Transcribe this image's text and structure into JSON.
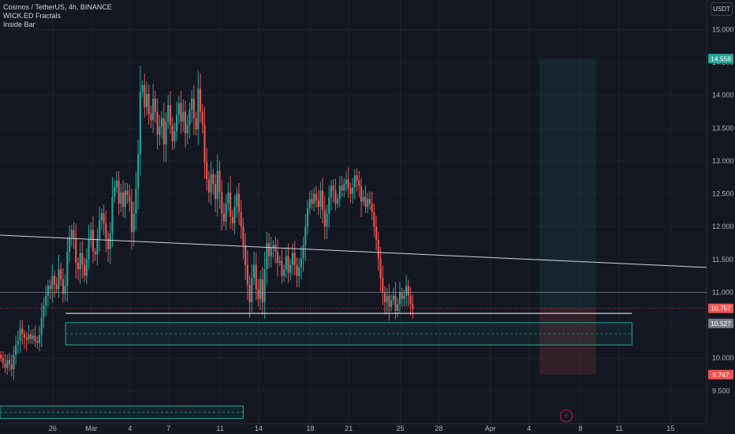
{
  "legend": {
    "symbol": "Cosmos / TetherUS, 4h, BINANCE",
    "indicator1": "WICK.ED Fractals",
    "indicator2": "Inside Bar"
  },
  "currency_label": "USDT",
  "colors": {
    "background": "#131722",
    "grid": "#1e222d",
    "up": "#26a69a",
    "down": "#ef5350",
    "zone_border": "#26a69a",
    "target_green": "#26a69a",
    "stop_red": "#ef5350",
    "trendline": "#d1d4dc"
  },
  "chart_data": {
    "type": "candlestick",
    "y_ticks": [
      9.5,
      10.0,
      10.5,
      11.0,
      11.5,
      12.0,
      12.5,
      13.0,
      13.5,
      14.0,
      14.5,
      15.0
    ],
    "y_tick_labels": [
      "9.500",
      "10.000",
      "10.500",
      "11.000",
      "11.500",
      "12.000",
      "12.500",
      "13.000",
      "13.500",
      "14.000",
      "14.500",
      "15.000"
    ],
    "ylim": [
      9.0,
      15.45
    ],
    "x_tick_labels": [
      {
        "label": "26",
        "day": 26
      },
      {
        "label": "Mar",
        "day": 29
      },
      {
        "label": "4",
        "day": 32
      },
      {
        "label": "7",
        "day": 35
      },
      {
        "label": "11",
        "day": 39
      },
      {
        "label": "14",
        "day": 42
      },
      {
        "label": "18",
        "day": 46
      },
      {
        "label": "21",
        "day": 49
      },
      {
        "label": "25",
        "day": 53
      },
      {
        "label": "28",
        "day": 56
      },
      {
        "label": "Apr",
        "day": 60
      },
      {
        "label": "4",
        "day": 63
      },
      {
        "label": "8",
        "day": 67
      },
      {
        "label": "11",
        "day": 70
      },
      {
        "label": "15",
        "day": 74
      }
    ],
    "xlim_days": [
      21.9,
      76.8
    ],
    "price_tags": [
      {
        "label": "14.558",
        "value": 14.558,
        "color": "#26a69a"
      },
      {
        "label": "10.757",
        "value": 10.757,
        "color": "#ef5350"
      },
      {
        "label": "10.527",
        "value": 10.527,
        "color": "#787b86"
      },
      {
        "label": "9.747",
        "value": 9.747,
        "color": "#ef5350"
      }
    ],
    "horizontal_lines": [
      {
        "value": 11.0,
        "style": "solid-thin"
      },
      {
        "value": 10.68,
        "style": "solid-white"
      }
    ],
    "trendline": {
      "start": {
        "day": 21.9,
        "price": 11.87
      },
      "end": {
        "day": 76.8,
        "price": 11.38
      }
    },
    "support_zone": {
      "day_start": 27,
      "day_end": 71,
      "price_low": 10.2,
      "price_high": 10.54,
      "mid": 10.37
    },
    "lower_zone": {
      "day_start": 21.9,
      "day_end": 40.8,
      "price_low": 9.08,
      "price_high": 9.27
    },
    "position": {
      "day_start": 63.8,
      "day_end": 68.2,
      "entry": 10.757,
      "target": 14.558,
      "stop": 9.747
    },
    "candles": {
      "start_day": 21.9,
      "bars_per_day": 6,
      "closes": [
        10.0,
        9.92,
        9.85,
        9.97,
        9.9,
        9.83,
        10.05,
        10.2,
        10.26,
        10.45,
        10.37,
        10.31,
        10.28,
        10.36,
        10.29,
        10.34,
        10.26,
        10.23,
        10.35,
        10.62,
        10.8,
        10.95,
        11.1,
        11.05,
        11.25,
        11.12,
        11.05,
        11.35,
        11.2,
        10.98,
        11.1,
        11.62,
        11.84,
        11.95,
        11.82,
        11.45,
        11.35,
        11.6,
        11.42,
        11.25,
        11.5,
        11.8,
        11.95,
        11.62,
        11.58,
        11.82,
        12.1,
        12.2,
        12.05,
        11.82,
        11.66,
        11.9,
        12.45,
        12.6,
        12.7,
        12.35,
        12.52,
        12.3,
        12.55,
        12.48,
        12.38,
        11.92,
        12.2,
        12.58,
        13.1,
        14.05,
        14.15,
        13.82,
        14.02,
        13.72,
        13.62,
        13.95,
        13.75,
        13.4,
        13.52,
        13.65,
        13.25,
        13.6,
        13.85,
        13.55,
        13.3,
        13.45,
        13.7,
        13.88,
        13.6,
        13.75,
        13.42,
        13.55,
        13.78,
        13.95,
        13.65,
        13.48,
        14.1,
        13.75,
        13.55,
        12.98,
        12.72,
        12.52,
        12.8,
        12.65,
        12.42,
        12.85,
        12.52,
        12.2,
        12.08,
        12.35,
        12.52,
        12.15,
        12.05,
        12.3,
        12.5,
        12.22,
        12.0,
        11.72,
        11.42,
        11.12,
        10.85,
        11.22,
        11.42,
        11.05,
        10.9,
        11.2,
        10.85,
        11.35,
        11.75,
        11.55,
        11.68,
        11.72,
        11.62,
        11.45,
        11.48,
        11.25,
        11.35,
        11.55,
        11.3,
        11.42,
        11.6,
        11.42,
        11.25,
        11.38,
        11.52,
        11.72,
        12.0,
        12.28,
        12.42,
        12.35,
        12.5,
        12.4,
        12.3,
        12.55,
        12.25,
        12.0,
        12.2,
        12.45,
        12.62,
        12.55,
        12.35,
        12.42,
        12.62,
        12.55,
        12.65,
        12.72,
        12.58,
        12.5,
        12.6,
        12.78,
        12.7,
        12.62,
        12.38,
        12.45,
        12.3,
        12.42,
        12.35,
        12.22,
        12.0,
        11.8,
        11.52,
        11.22,
        11.0,
        10.85,
        10.95,
        10.78,
        10.88,
        10.95,
        10.72,
        10.82,
        11.0,
        10.9,
        10.95,
        11.1,
        10.95,
        10.82,
        10.757
      ]
    }
  }
}
